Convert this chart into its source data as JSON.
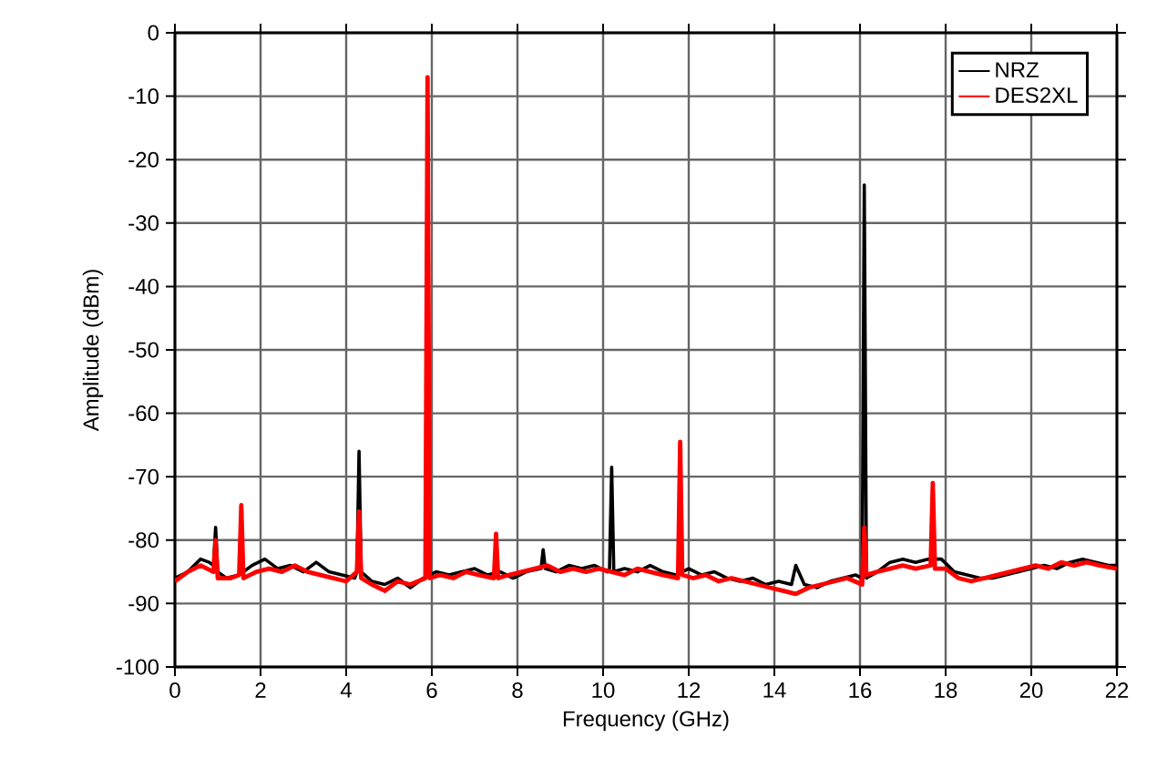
{
  "chart_data": {
    "type": "line",
    "xlabel": "Frequency (GHz)",
    "ylabel": "Amplitude (dBm)",
    "xlim": [
      0,
      22
    ],
    "ylim": [
      -100,
      0
    ],
    "xticks": [
      0,
      2,
      4,
      6,
      8,
      10,
      12,
      14,
      16,
      18,
      20,
      22
    ],
    "yticks": [
      -100,
      -90,
      -80,
      -70,
      -60,
      -50,
      -40,
      -30,
      -20,
      -10,
      0
    ],
    "grid": true,
    "legend": "top right",
    "marker": "none",
    "line_style": "solid",
    "series": [
      {
        "name": "NRZ",
        "color": "#000000",
        "x": [
          0,
          0.3,
          0.6,
          0.8,
          0.9,
          0.95,
          1.0,
          1.2,
          1.5,
          1.8,
          2.1,
          2.4,
          2.7,
          3.0,
          3.3,
          3.6,
          3.9,
          4.2,
          4.25,
          4.3,
          4.35,
          4.6,
          4.9,
          5.2,
          5.5,
          5.8,
          6.1,
          6.4,
          6.7,
          7.0,
          7.3,
          7.6,
          7.9,
          8.2,
          8.55,
          8.6,
          8.65,
          8.9,
          9.2,
          9.5,
          9.8,
          10.1,
          10.15,
          10.2,
          10.25,
          10.5,
          10.8,
          11.1,
          11.4,
          11.7,
          12.0,
          12.3,
          12.6,
          12.9,
          13.2,
          13.5,
          13.8,
          14.1,
          14.4,
          14.5,
          14.7,
          15.0,
          15.3,
          15.6,
          15.9,
          16.05,
          16.1,
          16.15,
          16.4,
          16.7,
          17.0,
          17.3,
          17.6,
          17.9,
          18.2,
          18.5,
          18.8,
          19.1,
          19.4,
          19.7,
          20.0,
          20.3,
          20.6,
          20.9,
          21.2,
          21.5,
          21.8,
          22
        ],
        "values": [
          -86,
          -85,
          -83,
          -83.5,
          -84,
          -78,
          -85,
          -86,
          -85.5,
          -84,
          -83,
          -84.5,
          -84,
          -85,
          -83.5,
          -85,
          -85.5,
          -86,
          -85,
          -66,
          -85,
          -86.5,
          -87,
          -86,
          -87.5,
          -86,
          -85,
          -85.5,
          -85,
          -84.5,
          -85.5,
          -85,
          -86,
          -85,
          -84.5,
          -81.5,
          -84.5,
          -85,
          -84,
          -84.5,
          -84,
          -85,
          -84.5,
          -68.5,
          -85,
          -84.5,
          -85,
          -84,
          -85,
          -85.5,
          -84.5,
          -85.5,
          -85,
          -86,
          -86.5,
          -86,
          -87,
          -86.5,
          -87,
          -84,
          -87,
          -87.5,
          -86.5,
          -86,
          -85.5,
          -86,
          -24,
          -86,
          -85,
          -83.5,
          -83,
          -83.5,
          -83,
          -83,
          -85,
          -85.5,
          -86,
          -86,
          -85.5,
          -85,
          -84.5,
          -84,
          -84.5,
          -83.5,
          -83,
          -83.5,
          -84,
          -84
        ]
      },
      {
        "name": "DES2XL",
        "color": "#ff0000",
        "x": [
          0,
          0.3,
          0.6,
          0.9,
          0.95,
          1.0,
          1.3,
          1.5,
          1.55,
          1.6,
          1.9,
          2.2,
          2.5,
          2.8,
          3.1,
          3.4,
          3.7,
          4.0,
          4.25,
          4.3,
          4.35,
          4.6,
          4.9,
          5.2,
          5.5,
          5.85,
          5.9,
          5.95,
          6.2,
          6.5,
          6.8,
          7.1,
          7.45,
          7.5,
          7.55,
          7.8,
          8.1,
          8.4,
          8.7,
          9.0,
          9.3,
          9.6,
          9.9,
          10.2,
          10.5,
          10.8,
          11.1,
          11.4,
          11.75,
          11.8,
          11.85,
          12.1,
          12.4,
          12.7,
          13.0,
          13.3,
          13.6,
          13.9,
          14.2,
          14.5,
          14.8,
          15.1,
          15.4,
          15.7,
          16.05,
          16.1,
          16.15,
          16.4,
          16.7,
          17.0,
          17.3,
          17.65,
          17.7,
          17.75,
          18.0,
          18.3,
          18.6,
          18.9,
          19.2,
          19.5,
          19.8,
          20.1,
          20.4,
          20.7,
          21.0,
          21.3,
          21.6,
          22
        ],
        "values": [
          -86.5,
          -85,
          -84,
          -85,
          -80,
          -86,
          -86,
          -85.5,
          -74.5,
          -86,
          -85,
          -84.5,
          -85,
          -84,
          -85,
          -85.5,
          -86,
          -86.5,
          -85,
          -75.5,
          -86,
          -87,
          -88,
          -86.5,
          -87,
          -86,
          -7,
          -86,
          -85.5,
          -86,
          -85,
          -85.5,
          -86,
          -79,
          -86,
          -85.5,
          -85,
          -84.5,
          -84,
          -85,
          -84.5,
          -85,
          -84.5,
          -85,
          -85.5,
          -84.5,
          -85,
          -85.5,
          -86,
          -64.5,
          -85.5,
          -86,
          -85.5,
          -86.5,
          -86,
          -86.5,
          -87,
          -87.5,
          -88,
          -88.5,
          -87.5,
          -87,
          -86.5,
          -86,
          -87,
          -78,
          -85.5,
          -85,
          -84.5,
          -84,
          -84.5,
          -84,
          -71,
          -84.5,
          -84.5,
          -86,
          -86.5,
          -86,
          -85.5,
          -85,
          -84.5,
          -84,
          -84.5,
          -83.5,
          -84,
          -83.5,
          -84,
          -84.5
        ]
      }
    ]
  }
}
